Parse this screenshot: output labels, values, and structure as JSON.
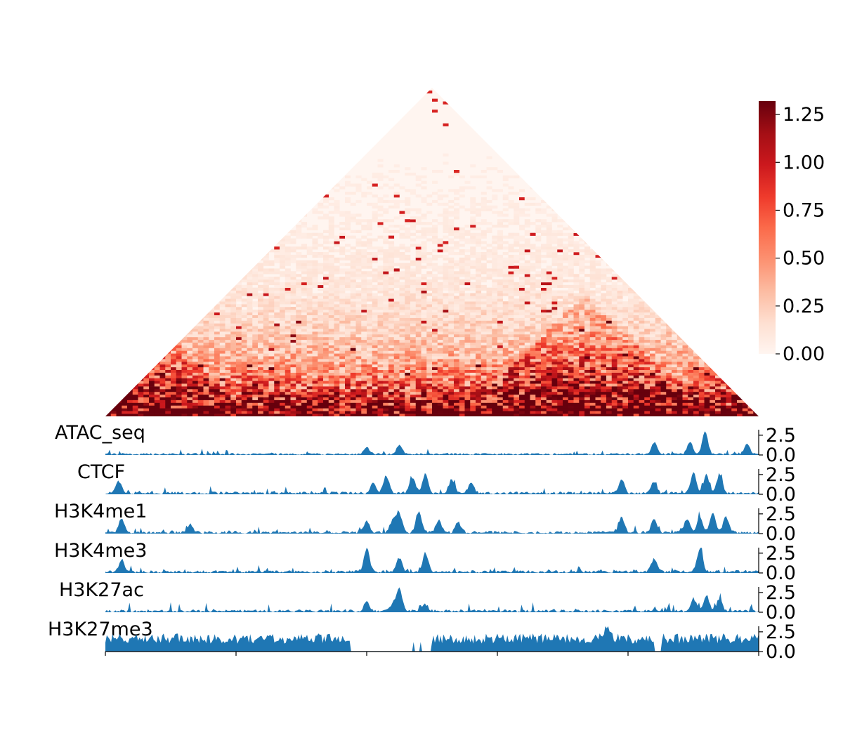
{
  "chart_data": [
    {
      "type": "heatmap",
      "title": "",
      "shape": "upper-triangle",
      "colormap": "Reds",
      "colorbar": {
        "min": 0.0,
        "max": 1.32,
        "ticks": [
          "0.00",
          "0.25",
          "0.50",
          "0.75",
          "1.00",
          "1.25"
        ],
        "tick_values": [
          0.0,
          0.25,
          0.5,
          0.75,
          1.0,
          1.25
        ]
      },
      "features": [
        {
          "description": "strong diagonal band",
          "region": [
            0.0,
            1.0
          ],
          "value": 1.3
        },
        {
          "description": "domain near left",
          "region": [
            0.0,
            0.22
          ],
          "value": 0.9
        },
        {
          "description": "domain at right",
          "region": [
            0.55,
            0.92
          ],
          "value": 1.1
        }
      ]
    },
    {
      "type": "area",
      "x_range": [
        0,
        1
      ],
      "y_ticks": [
        "0.0",
        "2.5"
      ],
      "tick_values": [
        0.0,
        2.5
      ],
      "color": "#1f77b4",
      "series": [
        {
          "name": "ATAC_seq",
          "ylim": [
            0,
            3.2
          ]
        },
        {
          "name": "CTCF",
          "ylim": [
            0,
            3.2
          ]
        },
        {
          "name": "H3K4me1",
          "ylim": [
            0,
            3.2
          ]
        },
        {
          "name": "H3K4me3",
          "ylim": [
            0,
            3.2
          ]
        },
        {
          "name": "H3K27ac",
          "ylim": [
            0,
            3.2
          ]
        },
        {
          "name": "H3K27me3",
          "ylim": [
            0,
            3.2
          ]
        }
      ]
    }
  ]
}
